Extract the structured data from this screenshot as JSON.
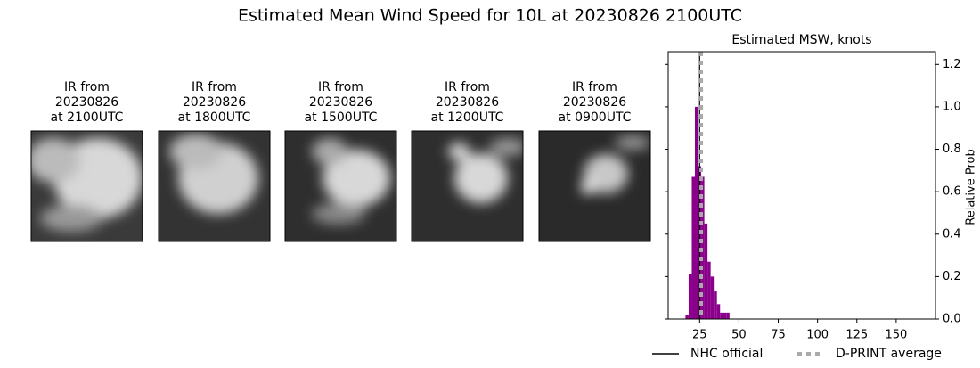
{
  "title": "Estimated Mean Wind Speed for 10L at 20230826 2100UTC",
  "panels": [
    {
      "title": [
        "IR from",
        "20230826",
        "at 2100UTC"
      ]
    },
    {
      "title": [
        "IR from",
        "20230826",
        "at 1800UTC"
      ]
    },
    {
      "title": [
        "IR from",
        "20230826",
        "at 1500UTC"
      ]
    },
    {
      "title": [
        "IR from",
        "20230826",
        "at 1200UTC"
      ]
    },
    {
      "title": [
        "IR from",
        "20230826",
        "at 0900UTC"
      ]
    }
  ],
  "chart_data": {
    "type": "histogram",
    "title": "Estimated MSW, knots",
    "y_label": "Relative Prob",
    "bins": [
      16,
      18,
      20,
      22,
      24,
      26,
      28,
      30,
      32,
      34,
      36,
      38,
      40,
      42,
      44
    ],
    "values": [
      0.02,
      0.21,
      0.67,
      1.0,
      0.72,
      0.67,
      0.45,
      0.27,
      0.2,
      0.13,
      0.07,
      0.03,
      0.03,
      0.03
    ],
    "color": "#8b008b",
    "xlim": [
      5,
      175
    ],
    "ylim": [
      0,
      1.26
    ],
    "xticks": [
      25,
      50,
      75,
      100,
      125,
      150
    ],
    "yticks": [
      {
        "value": 0,
        "label": "0.0"
      },
      0.2,
      0.4,
      0.6,
      0.8,
      {
        "value": 1,
        "label": "1.0"
      },
      1.2
    ],
    "reference_lines": [
      {
        "name": "NHC official",
        "value": 25,
        "color": "#000000",
        "style": "solid"
      },
      {
        "name": "D-PRINT average",
        "value": 26,
        "color": "#aaaaaa",
        "style": "dotted"
      }
    ]
  }
}
